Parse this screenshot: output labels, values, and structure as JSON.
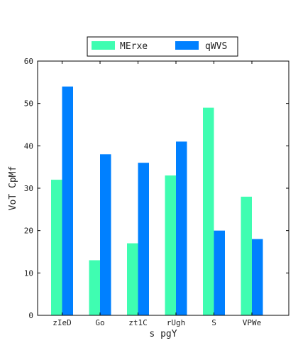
{
  "chart_data": {
    "type": "bar",
    "xlabel": "s pgY",
    "ylabel": "VoT CpMf",
    "ylim": [
      0,
      60
    ],
    "yticks": [
      0,
      10,
      20,
      30,
      40,
      50,
      60
    ],
    "categories": [
      "zIeD",
      "Go",
      "zt1C",
      "rUgh",
      "S",
      "VPWe"
    ],
    "series": [
      {
        "name": "MErxe",
        "color": "#3ffdb1",
        "values": [
          32,
          13,
          17,
          33,
          49,
          28
        ]
      },
      {
        "name": "qWVS",
        "color": "#0080ff",
        "values": [
          54,
          38,
          36,
          41,
          20,
          18
        ]
      }
    ],
    "legend_position": "top-center",
    "grid": false
  }
}
